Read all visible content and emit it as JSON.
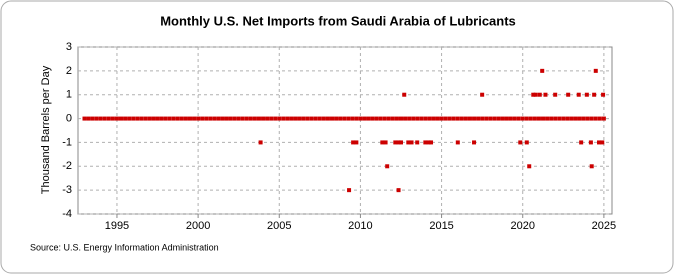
{
  "chart_data": {
    "type": "scatter",
    "title": "Monthly U.S. Net Imports from Saudi Arabia of Lubricants",
    "y_label": "Thousand Barrels per Day",
    "source": "Source: U.S. Energy Information Administration",
    "color": "#cc0000",
    "grid": true,
    "xlim": [
      1992.6,
      2025.5
    ],
    "xticks": [
      1995,
      2000,
      2005,
      2010,
      2015,
      2020,
      2025
    ],
    "ylim": [
      -4,
      3
    ],
    "yticks": [
      -4,
      -3,
      -2,
      -1,
      0,
      1,
      2,
      3
    ],
    "x": [
      1993,
      1993.25,
      1993.5,
      1993.75,
      1994,
      1994.25,
      1994.5,
      1994.75,
      1995,
      1995.25,
      1995.5,
      1995.75,
      1996,
      1996.25,
      1996.5,
      1996.75,
      1997,
      1997.25,
      1997.5,
      1997.75,
      1998,
      1998.25,
      1998.5,
      1998.75,
      1999,
      1999.25,
      1999.5,
      1999.75,
      2000,
      2000.25,
      2000.5,
      2000.75,
      2001,
      2001.25,
      2001.5,
      2001.75,
      2002,
      2002.25,
      2002.5,
      2002.75,
      2003,
      2003.25,
      2003.5,
      2003.75,
      2004,
      2004.25,
      2004.5,
      2004.75,
      2005,
      2005.25,
      2005.5,
      2005.75,
      2006,
      2006.25,
      2006.5,
      2006.75,
      2007,
      2007.25,
      2007.5,
      2007.75,
      2008,
      2008.25,
      2008.5,
      2008.75,
      2009,
      2009.25,
      2009.5,
      2009.75,
      2010,
      2010.25,
      2010.5,
      2010.75,
      2011,
      2011.25,
      2011.5,
      2011.75,
      2012,
      2012.25,
      2012.5,
      2012.75,
      2013,
      2013.25,
      2013.5,
      2013.75,
      2014,
      2014.25,
      2014.5,
      2014.75,
      2015,
      2015.25,
      2015.5,
      2015.75,
      2016,
      2016.25,
      2016.5,
      2016.75,
      2017,
      2017.25,
      2017.5,
      2017.75,
      2018,
      2018.25,
      2018.5,
      2018.75,
      2019,
      2019.25,
      2019.5,
      2019.75,
      2020,
      2020.25,
      2020.5,
      2020.75,
      2021,
      2021.25,
      2021.5,
      2021.75,
      2022,
      2022.25,
      2022.5,
      2022.75,
      2023,
      2023.25,
      2023.5,
      2023.75,
      2024,
      2024.25,
      2024.5,
      2024.75,
      2025,
      2003.85,
      2009.3,
      2009.55,
      2009.75,
      2011.35,
      2011.55,
      2011.65,
      2012.15,
      2012.35,
      2012.5,
      2012.35,
      2012.7,
      2012.95,
      2013.15,
      2013.5,
      2014,
      2014.2,
      2014.35,
      2016,
      2017,
      2017.5,
      2019.85,
      2020.25,
      2020.4,
      2020.65,
      2020.8,
      2021.05,
      2021.2,
      2021.4,
      2022,
      2022.8,
      2023.45,
      2023.6,
      2023.95,
      2024.2,
      2024.25,
      2024.4,
      2024.5,
      2024.7,
      2024.9,
      2024.95
    ],
    "values": [
      0,
      0,
      0,
      0,
      0,
      0,
      0,
      0,
      0,
      0,
      0,
      0,
      0,
      0,
      0,
      0,
      0,
      0,
      0,
      0,
      0,
      0,
      0,
      0,
      0,
      0,
      0,
      0,
      0,
      0,
      0,
      0,
      0,
      0,
      0,
      0,
      0,
      0,
      0,
      0,
      0,
      0,
      0,
      0,
      0,
      0,
      0,
      0,
      0,
      0,
      0,
      0,
      0,
      0,
      0,
      0,
      0,
      0,
      0,
      0,
      0,
      0,
      0,
      0,
      0,
      0,
      0,
      0,
      0,
      0,
      0,
      0,
      0,
      0,
      0,
      0,
      0,
      0,
      0,
      0,
      0,
      0,
      0,
      0,
      0,
      0,
      0,
      0,
      0,
      0,
      0,
      0,
      0,
      0,
      0,
      0,
      0,
      0,
      0,
      0,
      0,
      0,
      0,
      0,
      0,
      0,
      0,
      0,
      0,
      0,
      0,
      0,
      0,
      0,
      0,
      0,
      0,
      0,
      0,
      0,
      0,
      0,
      0,
      0,
      0,
      0,
      0,
      0,
      0,
      -1,
      -3,
      -1,
      -1,
      -1,
      -1,
      -2,
      -1,
      -1,
      -1,
      -3,
      1,
      -1,
      -1,
      -1,
      -1,
      -1,
      -1,
      -1,
      -1,
      1,
      -1,
      -1,
      -2,
      1,
      1,
      1,
      2,
      1,
      1,
      1,
      1,
      -1,
      1,
      -1,
      -2,
      1,
      2,
      -1,
      -1,
      1
    ]
  }
}
